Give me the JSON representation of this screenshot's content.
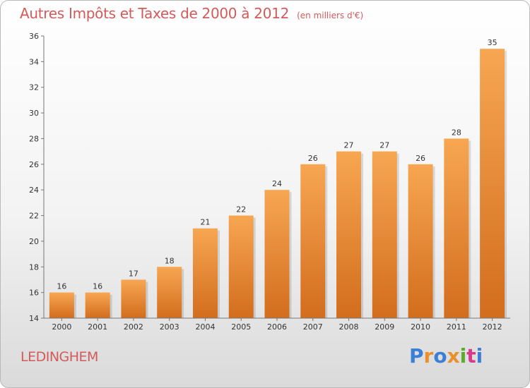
{
  "header": {
    "title": "Autres Impôts et Taxes de 2000 à 2012",
    "subtitle": "(en milliers d'€)"
  },
  "footer": {
    "commune": "LEDINGHEM",
    "brand": "Proxiti",
    "brand_colors": [
      "#3b7fd6",
      "#e8902a",
      "#3b7fd6",
      "#e8902a",
      "#5caa2e",
      "#d83a8a",
      "#3b7fd6"
    ]
  },
  "colors": {
    "bar_top": "#f7a652",
    "bar_bottom": "#d26d1d",
    "accent": "#d45a5a"
  },
  "chart_data": {
    "type": "bar",
    "categories": [
      "2000",
      "2001",
      "2002",
      "2003",
      "2004",
      "2005",
      "2006",
      "2007",
      "2008",
      "2009",
      "2010",
      "2011",
      "2012"
    ],
    "values": [
      16,
      16,
      17,
      18,
      21,
      22,
      24,
      26,
      27,
      27,
      26,
      28,
      35
    ],
    "ylim": [
      14,
      36
    ],
    "yticks": [
      14,
      16,
      18,
      20,
      22,
      24,
      26,
      28,
      30,
      32,
      34,
      36
    ],
    "grid": false,
    "legend": "none"
  }
}
